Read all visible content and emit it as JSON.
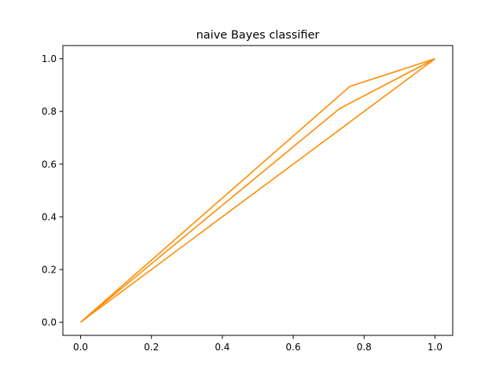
{
  "chart_data": {
    "type": "line",
    "title": "naive Bayes classifier",
    "xlabel": "",
    "ylabel": "",
    "xlim": [
      -0.05,
      1.05
    ],
    "ylim": [
      -0.05,
      1.05
    ],
    "xticks": [
      0.0,
      0.2,
      0.4,
      0.6,
      0.8,
      1.0
    ],
    "yticks": [
      0.0,
      0.2,
      0.4,
      0.6,
      0.8,
      1.0
    ],
    "xtick_labels": [
      "0.0",
      "0.2",
      "0.4",
      "0.6",
      "0.8",
      "1.0"
    ],
    "ytick_labels": [
      "0.0",
      "0.2",
      "0.4",
      "0.6",
      "0.8",
      "1.0"
    ],
    "grid": false,
    "legend": "none",
    "line_color": "#ff8c00",
    "series": [
      {
        "x": [
          0.0,
          0.76,
          1.0
        ],
        "y": [
          0.0,
          0.895,
          1.0
        ]
      },
      {
        "x": [
          0.0,
          0.73,
          1.0
        ],
        "y": [
          0.0,
          0.81,
          1.0
        ]
      },
      {
        "x": [
          0.0,
          1.0
        ],
        "y": [
          0.0,
          1.0
        ]
      }
    ]
  }
}
